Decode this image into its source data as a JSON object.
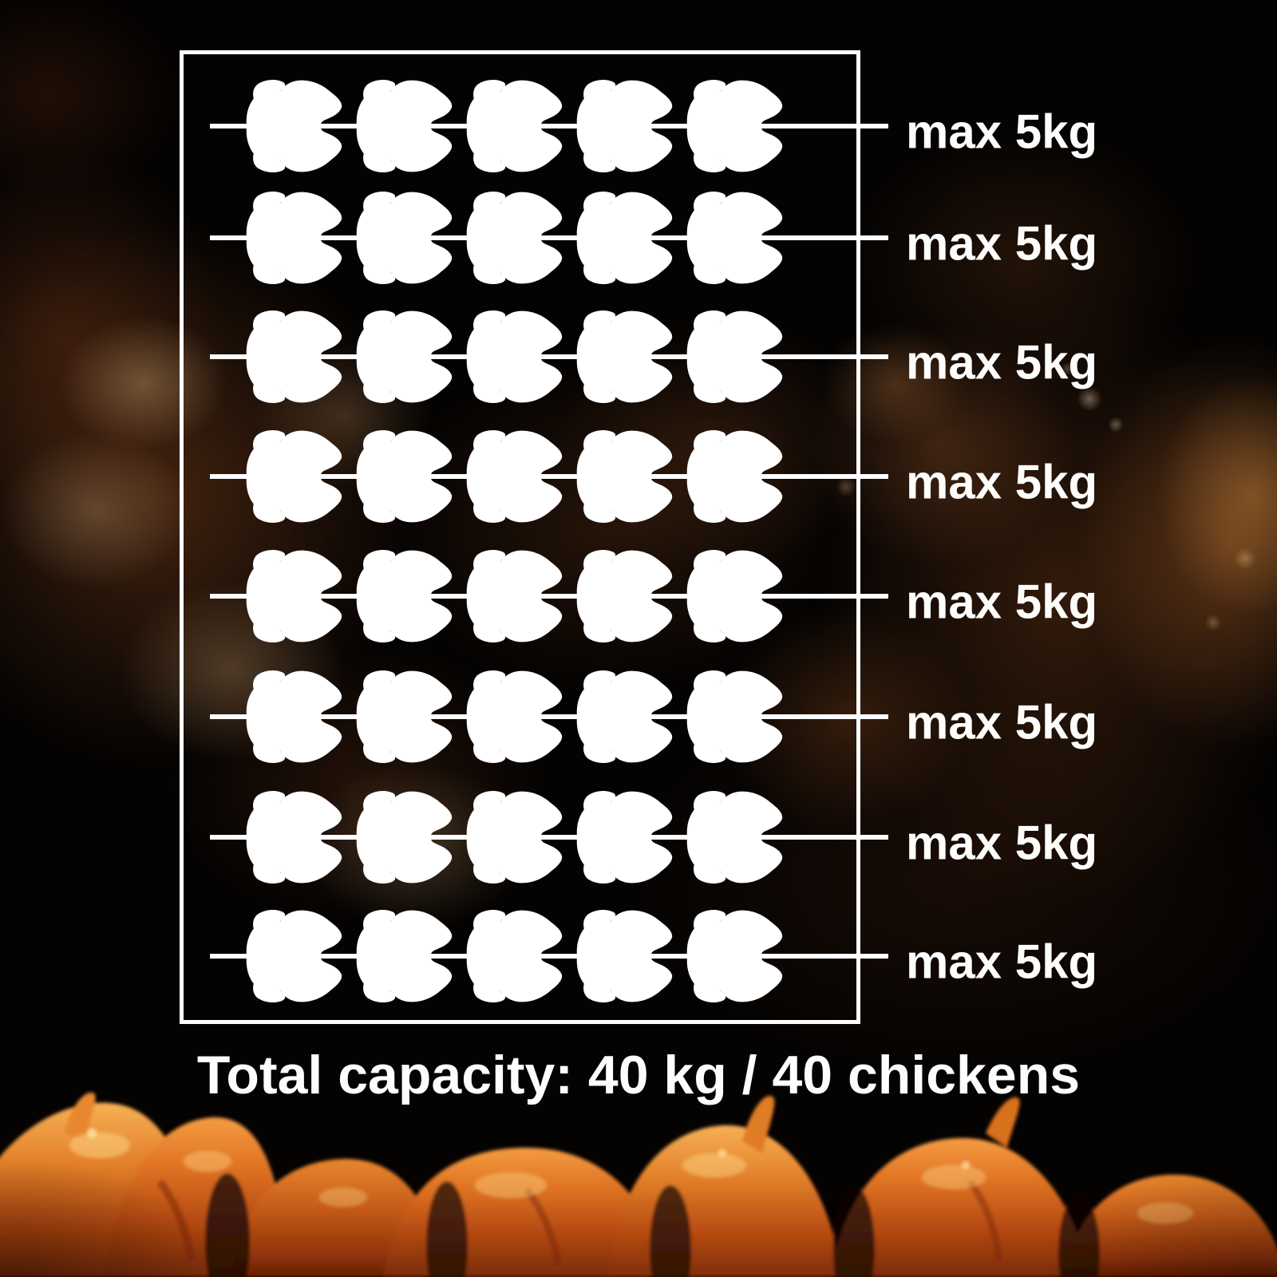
{
  "diagram": {
    "row_count": 8,
    "chickens_per_row": 5,
    "rows": [
      {
        "label": "max 5kg",
        "chicken_count": 5
      },
      {
        "label": "max 5kg",
        "chicken_count": 5
      },
      {
        "label": "max 5kg",
        "chicken_count": 5
      },
      {
        "label": "max 5kg",
        "chicken_count": 5
      },
      {
        "label": "max 5kg",
        "chicken_count": 5
      },
      {
        "label": "max 5kg",
        "chicken_count": 5
      },
      {
        "label": "max 5kg",
        "chicken_count": 5
      },
      {
        "label": "max 5kg",
        "chicken_count": 5
      }
    ],
    "total_label": "Total capacity: 40 kg / 40 chickens"
  },
  "icons": {
    "chicken": "chicken-top-view-icon",
    "skewer": "skewer-line"
  },
  "colors": {
    "foreground": "#ffffff",
    "background": "#060302",
    "roast_orange": "#c95f1d",
    "roast_highlight": "#f2b259",
    "roast_shadow": "#571f07"
  }
}
